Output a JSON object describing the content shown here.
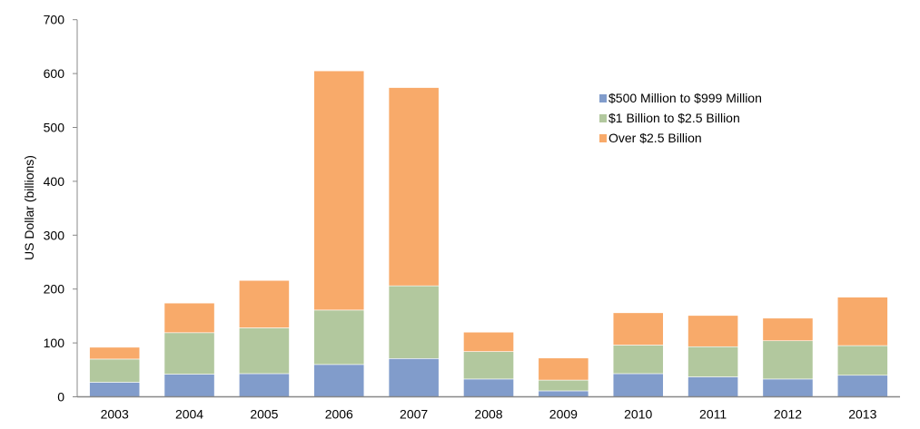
{
  "chart_data": {
    "type": "bar",
    "stacked": true,
    "title": "",
    "xlabel": "",
    "ylabel": "US Dollar (billions)",
    "ylim": [
      0,
      700
    ],
    "yticks": [
      "0",
      "100",
      "200",
      "300",
      "400",
      "500",
      "600",
      "700"
    ],
    "grid": false,
    "legend_position": "top-right",
    "categories": [
      "2003",
      "2004",
      "2005",
      "2006",
      "2007",
      "2008",
      "2009",
      "2010",
      "2011",
      "2012",
      "2013"
    ],
    "series": [
      {
        "name": "$500 Million to $999 Million",
        "color": "#819CCB",
        "values": [
          27,
          42,
          43,
          60,
          71,
          33,
          11,
          43,
          37,
          33,
          40
        ]
      },
      {
        "name": "$1 Billion to $2.5 Billion",
        "color": "#B2C89E",
        "values": [
          43,
          77,
          85,
          101,
          135,
          51,
          20,
          53,
          56,
          71,
          55
        ]
      },
      {
        "name": "Over $2.5 Billion",
        "color": "#F8AA6A",
        "values": [
          22,
          55,
          88,
          444,
          368,
          36,
          41,
          60,
          58,
          42,
          90
        ]
      }
    ]
  }
}
